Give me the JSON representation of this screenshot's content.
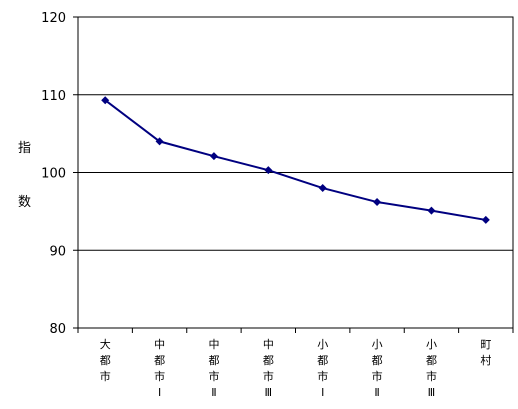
{
  "chart_data": {
    "type": "line",
    "categories": [
      [
        "大",
        "都",
        "市"
      ],
      [
        "中",
        "都",
        "市",
        "Ⅰ"
      ],
      [
        "中",
        "都",
        "市",
        "Ⅱ"
      ],
      [
        "中",
        "都",
        "市",
        "Ⅲ"
      ],
      [
        "小",
        "都",
        "市",
        "Ⅰ"
      ],
      [
        "小",
        "都",
        "市",
        "Ⅱ"
      ],
      [
        "小",
        "都",
        "市",
        "Ⅲ"
      ],
      [
        "町",
        "村"
      ]
    ],
    "series": [
      {
        "values": [
          109.3,
          104.0,
          102.1,
          100.3,
          98.0,
          96.2,
          95.1,
          93.9
        ]
      }
    ],
    "ylabel_chars": [
      "指",
      "数"
    ],
    "ylim": [
      80,
      120
    ],
    "yticks": [
      80,
      90,
      100,
      110,
      120
    ],
    "grid": true,
    "legend": "none",
    "line_color": "#000080",
    "marker": "diamond"
  }
}
